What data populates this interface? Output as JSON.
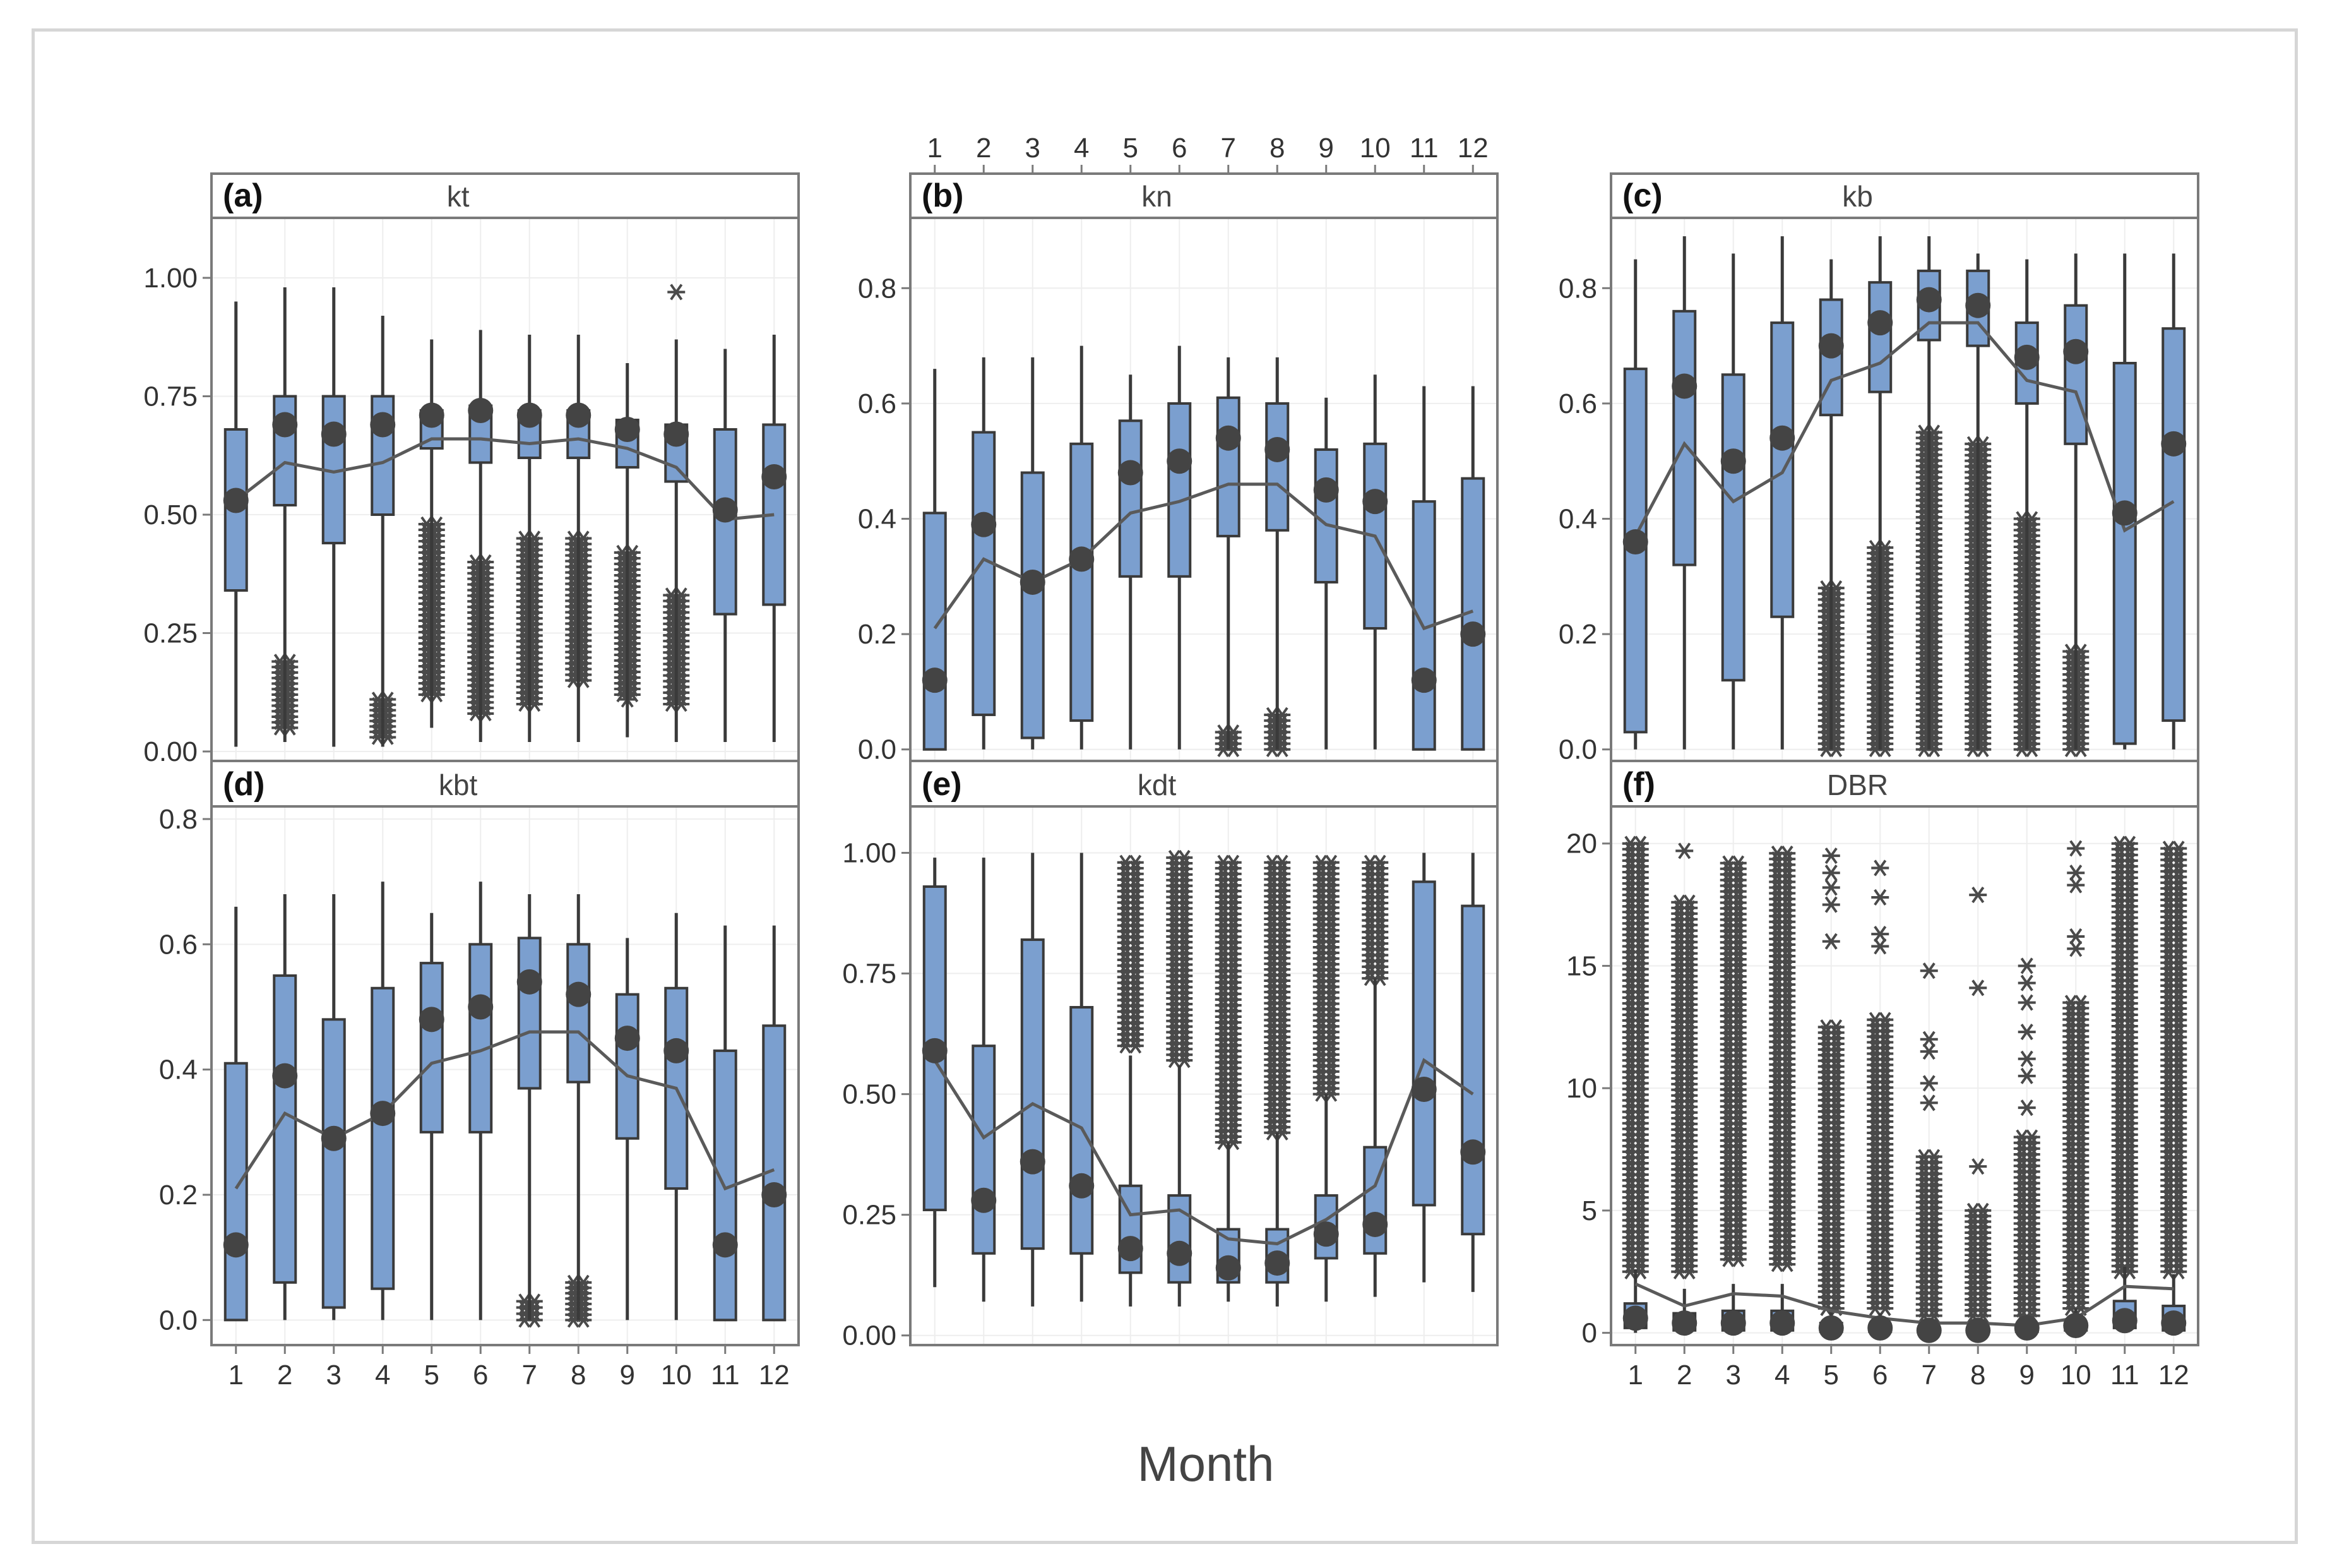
{
  "chart_data": [
    {
      "panel": "(a)",
      "type": "box",
      "title": "kt",
      "xlabel": "Month",
      "ylabel": "",
      "categories": [
        "1",
        "2",
        "3",
        "4",
        "5",
        "6",
        "7",
        "8",
        "9",
        "10",
        "11",
        "12"
      ],
      "yticks": [
        "0.00",
        "0.25",
        "0.50",
        "0.75",
        "1.00"
      ],
      "ytick_values": [
        0,
        0.25,
        0.5,
        0.75,
        1.0
      ],
      "ylim": [
        -0.02,
        1.1
      ],
      "q1": [
        0.34,
        0.52,
        0.44,
        0.5,
        0.64,
        0.61,
        0.62,
        0.62,
        0.6,
        0.57,
        0.29,
        0.31
      ],
      "q3": [
        0.68,
        0.75,
        0.75,
        0.75,
        0.72,
        0.73,
        0.72,
        0.72,
        0.7,
        0.69,
        0.68,
        0.69
      ],
      "whisker_low": [
        0.01,
        0.02,
        0.01,
        0.01,
        0.05,
        0.02,
        0.02,
        0.02,
        0.03,
        0.02,
        0.02,
        0.02
      ],
      "whisker_high": [
        0.95,
        0.98,
        0.98,
        0.92,
        0.87,
        0.89,
        0.88,
        0.88,
        0.82,
        0.87,
        0.85,
        0.88
      ],
      "median": [
        0.53,
        0.69,
        0.67,
        0.69,
        0.71,
        0.72,
        0.71,
        0.71,
        0.68,
        0.67,
        0.51,
        0.58
      ],
      "mean": [
        0.53,
        0.61,
        0.59,
        0.61,
        0.66,
        0.66,
        0.65,
        0.66,
        0.64,
        0.6,
        0.49,
        0.5
      ],
      "outliers": [
        null,
        [
          0.05,
          0.19
        ],
        null,
        [
          0.03,
          0.11
        ],
        [
          0.12,
          0.48
        ],
        [
          0.08,
          0.4
        ],
        [
          0.1,
          0.45
        ],
        [
          0.15,
          0.45
        ],
        [
          0.12,
          0.42
        ],
        [
          0.1,
          0.33
        ],
        null,
        null
      ],
      "outlier_points": [
        {
          "month": 10,
          "value": 0.97
        },
        {
          "month": 9,
          "value": 0.11
        }
      ]
    },
    {
      "panel": "(b)",
      "type": "box",
      "title": "kn",
      "xlabel": "Month",
      "ylabel": "",
      "x_axis_position": "top",
      "categories": [
        "1",
        "2",
        "3",
        "4",
        "5",
        "6",
        "7",
        "8",
        "9",
        "10",
        "11",
        "12"
      ],
      "yticks": [
        "0.0",
        "0.2",
        "0.4",
        "0.6",
        "0.8"
      ],
      "ytick_values": [
        0,
        0.2,
        0.4,
        0.6,
        0.8
      ],
      "ylim": [
        -0.02,
        0.9
      ],
      "q1": [
        0.0,
        0.06,
        0.02,
        0.05,
        0.3,
        0.3,
        0.37,
        0.38,
        0.29,
        0.21,
        0.0,
        0.0
      ],
      "q3": [
        0.41,
        0.55,
        0.48,
        0.53,
        0.57,
        0.6,
        0.61,
        0.6,
        0.52,
        0.53,
        0.43,
        0.47
      ],
      "whisker_low": [
        0.0,
        0.0,
        0.0,
        0.0,
        0.0,
        0.0,
        0.0,
        0.0,
        0.0,
        0.0,
        0.0,
        0.0
      ],
      "whisker_high": [
        0.66,
        0.68,
        0.68,
        0.7,
        0.65,
        0.7,
        0.68,
        0.68,
        0.61,
        0.65,
        0.63,
        0.63
      ],
      "median": [
        0.12,
        0.39,
        0.29,
        0.33,
        0.48,
        0.5,
        0.54,
        0.52,
        0.45,
        0.43,
        0.12,
        0.2
      ],
      "mean": [
        0.21,
        0.33,
        0.29,
        0.33,
        0.41,
        0.43,
        0.46,
        0.46,
        0.39,
        0.37,
        0.21,
        0.24
      ],
      "outliers": [
        null,
        null,
        null,
        null,
        null,
        null,
        [
          0.0,
          0.03
        ],
        [
          0.0,
          0.06
        ],
        null,
        null,
        null,
        null
      ]
    },
    {
      "panel": "(c)",
      "type": "box",
      "title": "kb",
      "xlabel": "Month",
      "ylabel": "",
      "categories": [
        "1",
        "2",
        "3",
        "4",
        "5",
        "6",
        "7",
        "8",
        "9",
        "10",
        "11",
        "12"
      ],
      "yticks": [
        "0.0",
        "0.2",
        "0.4",
        "0.6",
        "0.8"
      ],
      "ytick_values": [
        0,
        0.2,
        0.4,
        0.6,
        0.8
      ],
      "ylim": [
        -0.02,
        0.9
      ],
      "q1": [
        0.03,
        0.32,
        0.12,
        0.23,
        0.58,
        0.62,
        0.71,
        0.7,
        0.6,
        0.53,
        0.01,
        0.05
      ],
      "q3": [
        0.66,
        0.76,
        0.65,
        0.74,
        0.78,
        0.81,
        0.83,
        0.83,
        0.74,
        0.77,
        0.67,
        0.73
      ],
      "whisker_low": [
        0.0,
        0.0,
        0.0,
        0.0,
        0.0,
        0.0,
        0.0,
        0.0,
        0.0,
        0.0,
        0.0,
        0.0
      ],
      "whisker_high": [
        0.85,
        0.89,
        0.86,
        0.89,
        0.85,
        0.89,
        0.89,
        0.86,
        0.85,
        0.86,
        0.86,
        0.86
      ],
      "median": [
        0.36,
        0.63,
        0.5,
        0.54,
        0.7,
        0.74,
        0.78,
        0.77,
        0.68,
        0.69,
        0.41,
        0.53
      ],
      "mean": [
        0.37,
        0.53,
        0.43,
        0.48,
        0.64,
        0.67,
        0.74,
        0.74,
        0.64,
        0.62,
        0.38,
        0.43
      ],
      "outliers": [
        null,
        null,
        null,
        null,
        [
          0.0,
          0.28
        ],
        [
          0.0,
          0.35
        ],
        [
          0.0,
          0.55
        ],
        [
          0.0,
          0.53
        ],
        [
          0.0,
          0.4
        ],
        [
          0.0,
          0.17
        ],
        null,
        null
      ]
    },
    {
      "panel": "(d)",
      "type": "box",
      "title": "kbt",
      "xlabel": "Month",
      "ylabel": "",
      "categories": [
        "1",
        "2",
        "3",
        "4",
        "5",
        "6",
        "7",
        "8",
        "9",
        "10",
        "11",
        "12"
      ],
      "yticks": [
        "0.0",
        "0.2",
        "0.4",
        "0.6",
        "0.8"
      ],
      "ytick_values": [
        0,
        0.2,
        0.4,
        0.6,
        0.8
      ],
      "ylim": [
        -0.04,
        0.8
      ],
      "q1": [
        0.0,
        0.06,
        0.02,
        0.05,
        0.3,
        0.3,
        0.37,
        0.38,
        0.29,
        0.21,
        0.0,
        0.0
      ],
      "q3": [
        0.41,
        0.55,
        0.48,
        0.53,
        0.57,
        0.6,
        0.61,
        0.6,
        0.52,
        0.53,
        0.43,
        0.47
      ],
      "whisker_low": [
        0.0,
        0.0,
        0.0,
        0.0,
        0.0,
        0.0,
        0.0,
        0.0,
        0.0,
        0.0,
        0.0,
        0.0
      ],
      "whisker_high": [
        0.66,
        0.68,
        0.68,
        0.7,
        0.65,
        0.7,
        0.68,
        0.68,
        0.61,
        0.65,
        0.63,
        0.63
      ],
      "median": [
        0.12,
        0.39,
        0.29,
        0.33,
        0.48,
        0.5,
        0.54,
        0.52,
        0.45,
        0.43,
        0.12,
        0.2
      ],
      "mean": [
        0.21,
        0.33,
        0.29,
        0.33,
        0.41,
        0.43,
        0.46,
        0.46,
        0.39,
        0.37,
        0.21,
        0.24
      ],
      "outliers": [
        null,
        null,
        null,
        null,
        null,
        null,
        [
          0.0,
          0.03
        ],
        [
          0.0,
          0.06
        ],
        null,
        null,
        null,
        null
      ]
    },
    {
      "panel": "(e)",
      "type": "box",
      "title": "kdt",
      "xlabel": "Month",
      "ylabel": "",
      "categories": [
        "1",
        "2",
        "3",
        "4",
        "5",
        "6",
        "7",
        "8",
        "9",
        "10",
        "11",
        "12"
      ],
      "yticks": [
        "0.00",
        "0.25",
        "0.50",
        "0.75",
        "1.00"
      ],
      "ytick_values": [
        0,
        0.25,
        0.5,
        0.75,
        1.0
      ],
      "ylim": [
        -0.02,
        1.07
      ],
      "q1": [
        0.26,
        0.17,
        0.18,
        0.17,
        0.13,
        0.11,
        0.11,
        0.11,
        0.16,
        0.17,
        0.27,
        0.21
      ],
      "q3": [
        0.93,
        0.6,
        0.82,
        0.68,
        0.31,
        0.29,
        0.22,
        0.22,
        0.29,
        0.39,
        0.94,
        0.89
      ],
      "whisker_low": [
        0.1,
        0.07,
        0.06,
        0.07,
        0.06,
        0.06,
        0.07,
        0.06,
        0.07,
        0.08,
        0.11,
        0.09
      ],
      "whisker_high": [
        0.99,
        0.99,
        1.0,
        1.0,
        0.58,
        0.56,
        0.4,
        0.42,
        0.5,
        0.74,
        1.0,
        1.0
      ],
      "median": [
        0.59,
        0.28,
        0.36,
        0.31,
        0.18,
        0.17,
        0.14,
        0.15,
        0.21,
        0.23,
        0.51,
        0.38
      ],
      "mean": [
        0.57,
        0.41,
        0.48,
        0.43,
        0.25,
        0.26,
        0.2,
        0.19,
        0.24,
        0.31,
        0.57,
        0.5
      ],
      "outliers": [
        null,
        null,
        null,
        null,
        [
          0.6,
          0.98
        ],
        [
          0.57,
          0.99
        ],
        [
          0.4,
          0.98
        ],
        [
          0.42,
          0.98
        ],
        [
          0.5,
          0.98
        ],
        [
          0.74,
          0.98
        ],
        null,
        null
      ]
    },
    {
      "panel": "(f)",
      "type": "box",
      "title": "DBR",
      "xlabel": "Month",
      "ylabel": "",
      "categories": [
        "1",
        "2",
        "3",
        "4",
        "5",
        "6",
        "7",
        "8",
        "9",
        "10",
        "11",
        "12"
      ],
      "yticks": [
        "0",
        "5",
        "10",
        "15",
        "20"
      ],
      "ytick_values": [
        0,
        5,
        10,
        15,
        20
      ],
      "ylim": [
        -0.5,
        21
      ],
      "q1": [
        0.2,
        0.1,
        0.1,
        0.1,
        0.05,
        0.05,
        0.05,
        0.05,
        0.05,
        0.1,
        0.2,
        0.1
      ],
      "q3": [
        1.2,
        0.8,
        0.9,
        0.9,
        0.4,
        0.3,
        0.2,
        0.2,
        0.2,
        0.4,
        1.3,
        1.1
      ],
      "whisker_low": [
        0,
        0,
        0,
        0,
        0,
        0,
        0,
        0,
        0,
        0,
        0,
        0
      ],
      "whisker_high": [
        2.6,
        1.8,
        2.0,
        2.0,
        0.9,
        0.8,
        0.6,
        0.6,
        0.6,
        1.0,
        2.7,
        2.4
      ],
      "median": [
        0.6,
        0.4,
        0.4,
        0.4,
        0.2,
        0.2,
        0.1,
        0.1,
        0.2,
        0.3,
        0.5,
        0.4
      ],
      "mean": [
        2.0,
        1.1,
        1.6,
        1.5,
        0.9,
        0.6,
        0.4,
        0.4,
        0.3,
        0.6,
        1.9,
        1.8
      ],
      "outliers": [
        [
          2.5,
          20
        ],
        [
          2.5,
          17.6
        ],
        [
          3.0,
          19.2
        ],
        [
          2.8,
          19.6
        ],
        [
          1.0,
          12.5
        ],
        [
          1.0,
          12.8
        ],
        [
          0.7,
          7.2
        ],
        [
          0.7,
          5.0
        ],
        [
          0.7,
          8.0
        ],
        [
          1.0,
          13.5
        ],
        [
          2.5,
          20
        ],
        [
          2.5,
          19.8
        ]
      ],
      "outlier_points": [
        {
          "month": 2,
          "value": 19.7
        },
        {
          "month": 5,
          "value": 19.5
        },
        {
          "month": 5,
          "value": 18.8
        },
        {
          "month": 5,
          "value": 18.2
        },
        {
          "month": 5,
          "value": 17.5
        },
        {
          "month": 5,
          "value": 16.0
        },
        {
          "month": 6,
          "value": 19.0
        },
        {
          "month": 6,
          "value": 17.8
        },
        {
          "month": 6,
          "value": 16.3
        },
        {
          "month": 6,
          "value": 15.8
        },
        {
          "month": 7,
          "value": 14.8
        },
        {
          "month": 7,
          "value": 12.0
        },
        {
          "month": 7,
          "value": 11.5
        },
        {
          "month": 7,
          "value": 10.2
        },
        {
          "month": 7,
          "value": 9.4
        },
        {
          "month": 8,
          "value": 17.9
        },
        {
          "month": 8,
          "value": 14.1
        },
        {
          "month": 8,
          "value": 6.8
        },
        {
          "month": 9,
          "value": 15.0
        },
        {
          "month": 9,
          "value": 14.3
        },
        {
          "month": 9,
          "value": 13.5
        },
        {
          "month": 9,
          "value": 12.3
        },
        {
          "month": 9,
          "value": 11.2
        },
        {
          "month": 9,
          "value": 10.5
        },
        {
          "month": 9,
          "value": 9.2
        },
        {
          "month": 10,
          "value": 19.8
        },
        {
          "month": 10,
          "value": 18.8
        },
        {
          "month": 10,
          "value": 18.3
        },
        {
          "month": 10,
          "value": 16.2
        },
        {
          "month": 10,
          "value": 15.7
        }
      ]
    }
  ],
  "x_axis_label": "Month"
}
